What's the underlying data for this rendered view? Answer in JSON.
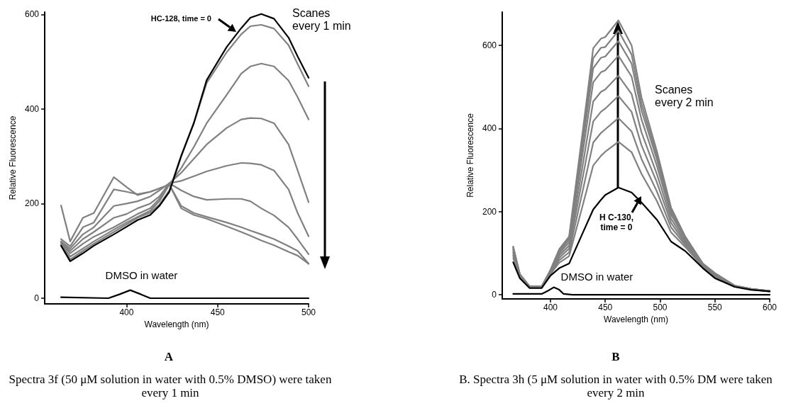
{
  "chart_data": [
    {
      "type": "line",
      "title": "A",
      "subtitle": "Spectra 3f (50 μM solution in water with 0.5% DMSO) were taken every 1 min",
      "xlabel": "Wavelength (nm)",
      "ylabel": "Relative Fluorescence",
      "xlim": [
        355,
        500
      ],
      "xticks": [
        400,
        450,
        500
      ],
      "ylim": [
        -12,
        605
      ],
      "yticks": [
        0,
        200,
        400,
        600
      ],
      "annotations": [
        "HC-128, time = 0",
        "Scanes every 1 min",
        {
          "text": "DMSO in water",
          "x": 402,
          "y": 17
        }
      ],
      "series": [
        {
          "color": "#808080",
          "x": [
            364,
            369,
            376,
            382,
            393,
            400,
            406,
            413,
            418,
            423.5,
            430,
            437,
            444,
            455,
            463,
            468,
            474,
            481,
            489,
            494,
            500
          ],
          "values": [
            196,
            120,
            170,
            180,
            256,
            235,
            218,
            225,
            232,
            240,
            190,
            176,
            168,
            152,
            140,
            132,
            122,
            112,
            98,
            90,
            73
          ]
        },
        {
          "color": "#808080",
          "x": [
            364,
            369,
            376,
            382,
            393,
            400,
            406,
            413,
            418,
            423.5,
            430,
            437,
            444,
            455,
            463,
            468,
            474,
            481,
            489,
            494,
            500
          ],
          "values": [
            125,
            110,
            150,
            160,
            230,
            225,
            220,
            225,
            232,
            240,
            195,
            180,
            172,
            160,
            150,
            143,
            135,
            125,
            110,
            100,
            73
          ]
        },
        {
          "color": "#808080",
          "x": [
            364,
            369,
            376,
            382,
            393,
            400,
            406,
            413,
            418,
            423.5,
            430,
            437,
            444,
            455,
            463,
            468,
            474,
            481,
            489,
            494,
            500
          ],
          "values": [
            120,
            105,
            135,
            150,
            195,
            200,
            205,
            215,
            228,
            243,
            228,
            215,
            208,
            210,
            210,
            205,
            190,
            175,
            150,
            125,
            93
          ]
        },
        {
          "color": "#808080",
          "x": [
            364,
            369,
            376,
            382,
            393,
            400,
            406,
            413,
            418,
            423.5,
            430,
            437,
            444,
            455,
            463,
            468,
            474,
            481,
            489,
            494,
            500
          ],
          "values": [
            120,
            100,
            125,
            140,
            170,
            178,
            190,
            200,
            215,
            243,
            248,
            258,
            268,
            280,
            286,
            285,
            282,
            270,
            230,
            180,
            131
          ]
        },
        {
          "color": "#808080",
          "x": [
            364,
            369,
            376,
            382,
            393,
            400,
            406,
            413,
            418,
            423.5,
            430,
            437,
            444,
            455,
            463,
            468,
            474,
            481,
            489,
            494,
            500
          ],
          "values": [
            118,
            95,
            115,
            130,
            150,
            165,
            178,
            190,
            210,
            243,
            265,
            295,
            325,
            360,
            378,
            381,
            380,
            370,
            325,
            270,
            203
          ]
        },
        {
          "color": "#808080",
          "x": [
            364,
            369,
            376,
            382,
            393,
            400,
            406,
            413,
            418,
            423.5,
            430,
            437,
            444,
            455,
            463,
            468,
            474,
            481,
            489,
            494,
            500
          ],
          "values": [
            115,
            88,
            105,
            120,
            145,
            160,
            172,
            185,
            205,
            240,
            275,
            320,
            370,
            430,
            475,
            490,
            496,
            490,
            460,
            425,
            378
          ]
        },
        {
          "color": "#808080",
          "x": [
            364,
            369,
            376,
            382,
            393,
            400,
            406,
            413,
            418,
            423.5,
            430,
            437,
            444,
            455,
            463,
            468,
            474,
            481,
            489,
            494,
            500
          ],
          "values": [
            113,
            82,
            100,
            115,
            140,
            156,
            170,
            181,
            198,
            228,
            302,
            370,
            455,
            520,
            558,
            575,
            578,
            570,
            535,
            495,
            448
          ]
        },
        {
          "color": "#000000",
          "x": [
            364,
            369,
            376,
            382,
            393,
            400,
            406,
            413,
            418,
            423.5,
            430,
            437,
            444,
            455,
            463,
            468,
            474,
            481,
            489,
            494,
            500
          ],
          "values": [
            111,
            78,
            95,
            111,
            135,
            151,
            165,
            176,
            195,
            225,
            300,
            371,
            461,
            531,
            571,
            593,
            601,
            591,
            551,
            511,
            466
          ]
        },
        {
          "color": "#000000",
          "x": [
            364,
            390,
            396,
            402,
            408,
            413,
            500
          ],
          "values": [
            2,
            0,
            8,
            17,
            8,
            0,
            0
          ]
        }
      ]
    },
    {
      "type": "line",
      "title": "B",
      "subtitle": "B. Spectra 3h (5 μM solution in water with 0.5% DM were taken every 2 min",
      "xlabel": "Wavelength (nm)",
      "ylabel": "Relative Fluorescence",
      "xlim": [
        356,
        600
      ],
      "xticks": [
        400,
        450,
        500,
        550,
        600
      ],
      "ylim": [
        -10,
        680
      ],
      "yticks": [
        0,
        200,
        400,
        600
      ],
      "annotations": [
        "Scanes every 2 min",
        "H C-130, time = 0",
        {
          "text": "DMSO in water",
          "x": 403,
          "y": 21
        }
      ],
      "series": [
        {
          "color": "#808080",
          "x": [
            366,
            372,
            381,
            392,
            400,
            408,
            417,
            430,
            439,
            446,
            450,
            462,
            474,
            483,
            497,
            510,
            523,
            539,
            550,
            568,
            583,
            600
          ],
          "values": [
            88,
            43,
            17,
            17,
            50,
            77,
            93,
            221,
            311,
            334,
            344,
            368,
            343,
            291,
            226,
            150,
            115,
            67,
            43,
            20,
            13,
            8
          ]
        },
        {
          "color": "#808080",
          "x": [
            366,
            372,
            381,
            392,
            400,
            408,
            417,
            430,
            439,
            446,
            450,
            462,
            474,
            483,
            497,
            510,
            523,
            539,
            550,
            568,
            583,
            600
          ],
          "values": [
            94,
            44,
            18,
            18,
            52,
            83,
            102,
            257,
            366,
            389,
            398,
            425,
            393,
            327,
            249,
            162,
            120,
            69,
            45,
            20,
            13,
            8
          ]
        },
        {
          "color": "#808080",
          "x": [
            366,
            372,
            381,
            392,
            400,
            408,
            417,
            430,
            439,
            446,
            450,
            462,
            474,
            483,
            497,
            510,
            523,
            539,
            550,
            568,
            583,
            600
          ],
          "values": [
            99,
            45,
            18,
            18,
            54,
            89,
            111,
            290,
            417,
            440,
            448,
            478,
            440,
            360,
            271,
            173,
            124,
            70,
            47,
            21,
            13,
            9
          ]
        },
        {
          "color": "#808080",
          "x": [
            366,
            372,
            381,
            392,
            400,
            408,
            417,
            430,
            439,
            446,
            450,
            462,
            474,
            483,
            497,
            510,
            523,
            539,
            550,
            568,
            583,
            600
          ],
          "values": [
            103,
            47,
            19,
            19,
            55,
            95,
            118,
            321,
            465,
            488,
            494,
            527,
            483,
            391,
            291,
            183,
            128,
            71,
            48,
            21,
            13,
            9
          ]
        },
        {
          "color": "#808080",
          "x": [
            366,
            372,
            381,
            392,
            400,
            408,
            417,
            430,
            439,
            446,
            450,
            462,
            474,
            483,
            497,
            510,
            523,
            539,
            550,
            568,
            583,
            600
          ],
          "values": [
            108,
            48,
            19,
            19,
            57,
            100,
            126,
            352,
            511,
            535,
            540,
            575,
            525,
            422,
            311,
            193,
            133,
            73,
            49,
            21,
            14,
            9
          ]
        },
        {
          "color": "#808080",
          "x": [
            366,
            372,
            381,
            392,
            400,
            408,
            417,
            430,
            439,
            446,
            450,
            462,
            474,
            483,
            497,
            510,
            523,
            539,
            550,
            568,
            583,
            600
          ],
          "values": [
            111,
            49,
            20,
            20,
            58,
            104,
            132,
            374,
            545,
            570,
            573,
            610,
            556,
            444,
            326,
            200,
            136,
            74,
            51,
            22,
            14,
            9
          ]
        },
        {
          "color": "#808080",
          "x": [
            366,
            372,
            381,
            392,
            400,
            408,
            417,
            430,
            439,
            446,
            450,
            462,
            474,
            483,
            497,
            510,
            523,
            539,
            550,
            568,
            583,
            600
          ],
          "values": [
            114,
            49,
            20,
            20,
            59,
            107,
            136,
            389,
            569,
            594,
            596,
            635,
            578,
            459,
            336,
            205,
            138,
            75,
            52,
            22,
            14,
            9
          ]
        },
        {
          "color": "#808080",
          "x": [
            366,
            372,
            381,
            392,
            400,
            408,
            417,
            430,
            439,
            446,
            450,
            462,
            474,
            483,
            497,
            510,
            523,
            539,
            550,
            568,
            583,
            600
          ],
          "values": [
            116,
            50,
            20,
            20,
            60,
            110,
            140,
            405,
            593,
            616,
            620,
            660,
            600,
            475,
            346,
            210,
            140,
            75,
            52,
            22,
            14,
            9
          ]
        },
        {
          "color": "#000000",
          "x": [
            366,
            372,
            381,
            392,
            400,
            408,
            417,
            430,
            439,
            446,
            450,
            462,
            474,
            483,
            497,
            510,
            523,
            539,
            550,
            568,
            583,
            600
          ],
          "values": [
            78,
            40,
            16,
            16,
            46,
            64,
            75,
            152,
            205,
            228,
            240,
            258,
            246,
            222,
            181,
            128,
            105,
            64,
            40,
            19,
            12,
            8
          ]
        },
        {
          "color": "#000000",
          "x": [
            366,
            392,
            398,
            403,
            408,
            412,
            420,
            600
          ],
          "values": [
            2,
            2,
            10,
            18,
            12,
            2,
            0,
            0
          ]
        }
      ]
    }
  ]
}
